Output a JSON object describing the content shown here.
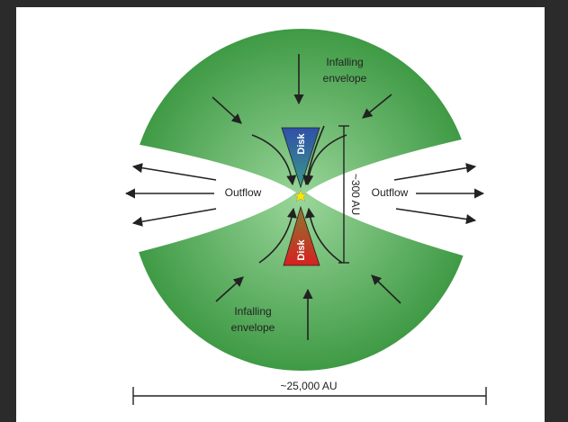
{
  "labels": {
    "infalling_top": [
      "Infalling",
      "envelope"
    ],
    "infalling_bottom": [
      "Infalling",
      "envelope"
    ],
    "outflow_left": "Outflow",
    "outflow_right": "Outflow",
    "disk_top": "Disk",
    "disk_bottom": "Disk",
    "inner_scale": "~300 AU",
    "outer_scale": "~25,000 AU"
  }
}
